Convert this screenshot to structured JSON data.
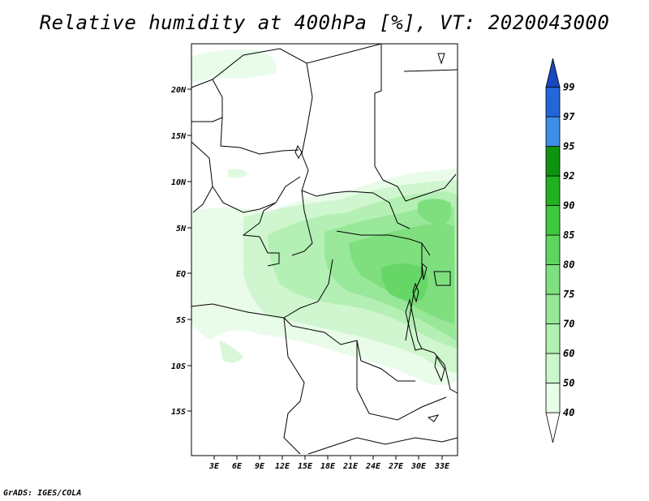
{
  "title": "Relative humidity at 400hPa [%], VT: 2020043000",
  "credit": "GrADS: IGES/COLA",
  "map": {
    "lat_labels": [
      "20N",
      "15N",
      "10N",
      "5N",
      "EQ",
      "5S",
      "10S",
      "15S"
    ],
    "lon_labels": [
      "3E",
      "6E",
      "9E",
      "12E",
      "15E",
      "18E",
      "21E",
      "24E",
      "27E",
      "30E",
      "33E"
    ]
  },
  "colorbar": {
    "labels": [
      "40",
      "50",
      "60",
      "70",
      "75",
      "80",
      "85",
      "90",
      "92",
      "95",
      "97",
      "99"
    ],
    "colors": [
      "#ffffff",
      "#e6ffe6",
      "#ccf7cc",
      "#b0f0b0",
      "#96e896",
      "#7ee07e",
      "#5ed55e",
      "#3fc83f",
      "#22b022",
      "#0f930f",
      "#3d8fe8",
      "#2266d8",
      "#1848c0"
    ]
  }
}
